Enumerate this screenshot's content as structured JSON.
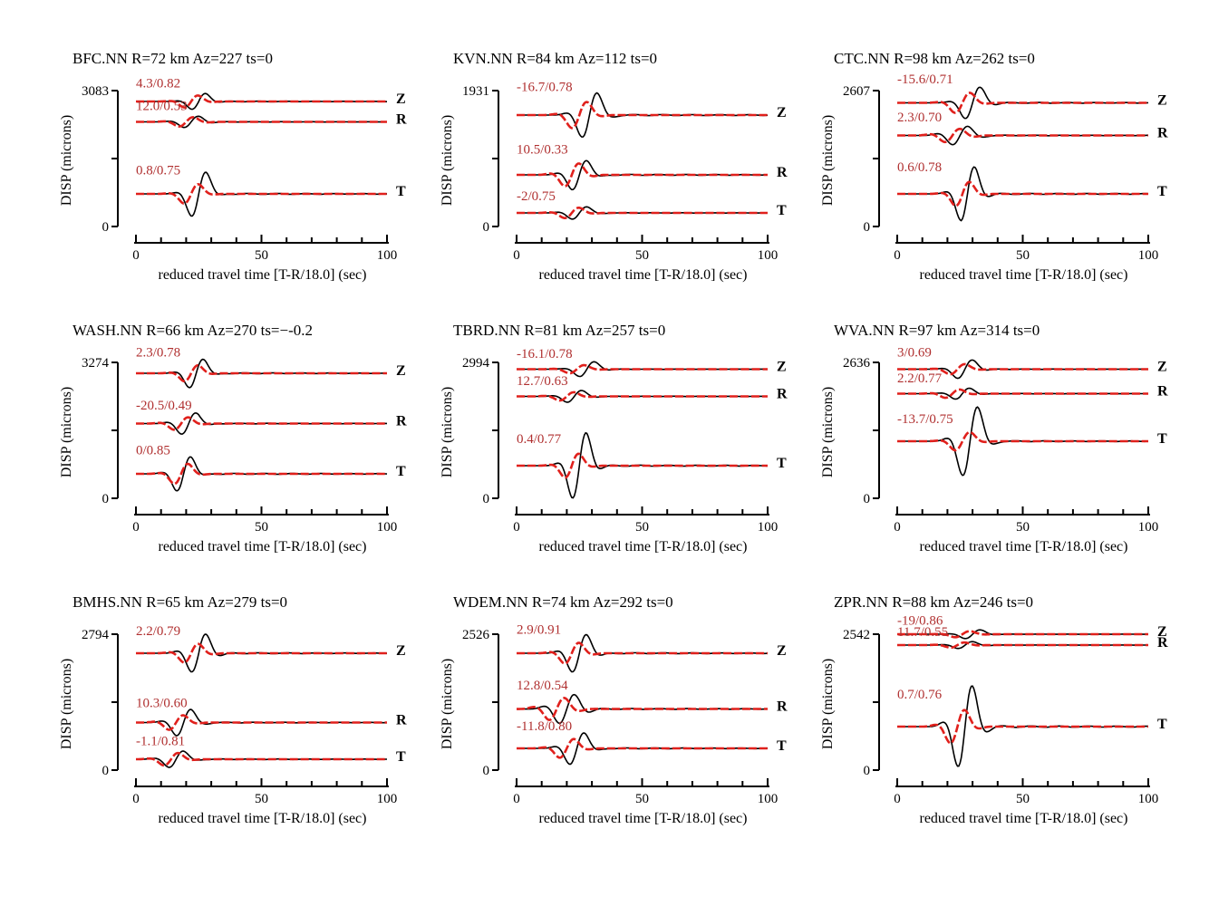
{
  "colors": {
    "observed": "#000000",
    "synthetic": "#e0201c",
    "annotation": "#b03030"
  },
  "chart_data": [
    {
      "type": "line",
      "title": "BFC.NN R=72 km Az=227 ts=0",
      "xlabel": "reduced travel time [T-R/18.0] (sec)",
      "ylabel": "DISP (microns)",
      "xlim": [
        0,
        100
      ],
      "xticks": [
        0,
        50,
        100
      ],
      "ymax_label": "3083",
      "ymin_label": "0",
      "traces": [
        {
          "component": "Z",
          "annotation": "4.3/0.82",
          "baseline": 0.92,
          "scale": 0.06,
          "center": 22,
          "width": 5.5,
          "period": 14,
          "obs_shift": 3,
          "obs_gain": 1.3
        },
        {
          "component": "R",
          "annotation": "12.0/0.53",
          "baseline": 0.77,
          "scale": 0.045,
          "center": 20,
          "width": 6,
          "period": 14,
          "obs_shift": 2,
          "obs_gain": 1.2
        },
        {
          "component": "T",
          "annotation": "0.8/0.75",
          "baseline": 0.24,
          "scale": 0.1,
          "center": 22,
          "width": 5.5,
          "period": 15,
          "obs_shift": 3,
          "obs_gain": 2.3
        }
      ]
    },
    {
      "type": "line",
      "title": "KVN.NN R=84 km Az=112 ts=0",
      "xlabel": "reduced travel time [T-R/18.0] (sec)",
      "ylabel": "DISP (microns)",
      "xlim": [
        0,
        100
      ],
      "xticks": [
        0,
        50,
        100
      ],
      "ymax_label": "1931",
      "ymin_label": "0",
      "traces": [
        {
          "component": "Z",
          "annotation": "-16.7/0.78",
          "baseline": 0.82,
          "scale": 0.13,
          "center": 25,
          "width": 6,
          "period": 15,
          "obs_shift": 4,
          "obs_gain": 1.7
        },
        {
          "component": "R",
          "annotation": "10.5/0.33",
          "baseline": 0.38,
          "scale": 0.11,
          "center": 22,
          "width": 6,
          "period": 14,
          "obs_shift": 3,
          "obs_gain": 1.3
        },
        {
          "component": "T",
          "annotation": "-2/0.75",
          "baseline": 0.1,
          "scale": 0.05,
          "center": 22,
          "width": 6,
          "period": 14,
          "obs_shift": 3,
          "obs_gain": 1.2
        }
      ]
    },
    {
      "type": "line",
      "title": "CTC.NN R=98 km Az=262 ts=0",
      "xlabel": "reduced travel time [T-R/18.0] (sec)",
      "ylabel": "DISP (microns)",
      "xlim": [
        0,
        100
      ],
      "xticks": [
        0,
        50,
        100
      ],
      "ymax_label": "2607",
      "ymin_label": "0",
      "traces": [
        {
          "component": "Z",
          "annotation": "-15.6/0.71",
          "baseline": 0.91,
          "scale": 0.1,
          "center": 26,
          "width": 6,
          "period": 15,
          "obs_shift": 4,
          "obs_gain": 1.5
        },
        {
          "component": "R",
          "annotation": "2.3/0.70",
          "baseline": 0.67,
          "scale": 0.06,
          "center": 22,
          "width": 7,
          "period": 14,
          "obs_shift": 3,
          "obs_gain": 1.4
        },
        {
          "component": "T",
          "annotation": "0.6/0.78",
          "baseline": 0.24,
          "scale": 0.12,
          "center": 26,
          "width": 5.5,
          "period": 14,
          "obs_shift": 2,
          "obs_gain": 2.2
        }
      ]
    },
    {
      "type": "line",
      "title": "WASH.NN R=66 km Az=270 ts=−-0.2",
      "xlabel": "reduced travel time [T-R/18.0] (sec)",
      "ylabel": "DISP (microns)",
      "xlim": [
        0,
        100
      ],
      "xticks": [
        0,
        50,
        100
      ],
      "ymax_label": "3274",
      "ymin_label": "0",
      "traces": [
        {
          "component": "Z",
          "annotation": "2.3/0.78",
          "baseline": 0.92,
          "scale": 0.08,
          "center": 22,
          "width": 5.5,
          "period": 14,
          "obs_shift": 2,
          "obs_gain": 1.8
        },
        {
          "component": "R",
          "annotation": "-20.5/0.49",
          "baseline": 0.55,
          "scale": 0.06,
          "center": 18,
          "width": 6,
          "period": 14,
          "obs_shift": 3,
          "obs_gain": 1.7
        },
        {
          "component": "T",
          "annotation": "0/0.85",
          "baseline": 0.18,
          "scale": 0.1,
          "center": 18,
          "width": 5.5,
          "period": 14,
          "obs_shift": 1,
          "obs_gain": 1.7
        }
      ]
    },
    {
      "type": "line",
      "title": "TBRD.NN R=81 km Az=257 ts=0",
      "xlabel": "reduced travel time [T-R/18.0] (sec)",
      "ylabel": "DISP (microns)",
      "xlim": [
        0,
        100
      ],
      "xticks": [
        0,
        50,
        100
      ],
      "ymax_label": "2994",
      "ymin_label": "0",
      "traces": [
        {
          "component": "Z",
          "annotation": "-16.1/0.78",
          "baseline": 0.95,
          "scale": 0.04,
          "center": 24,
          "width": 6,
          "period": 15,
          "obs_shift": 4,
          "obs_gain": 1.8
        },
        {
          "component": "R",
          "annotation": "12.7/0.63",
          "baseline": 0.75,
          "scale": 0.04,
          "center": 20,
          "width": 6,
          "period": 14,
          "obs_shift": 3,
          "obs_gain": 1.4
        },
        {
          "component": "T",
          "annotation": "0.4/0.77",
          "baseline": 0.24,
          "scale": 0.12,
          "center": 22,
          "width": 5.5,
          "period": 14,
          "obs_shift": 3,
          "obs_gain": 2.7
        }
      ]
    },
    {
      "type": "line",
      "title": "WVA.NN R=97 km Az=314 ts=0",
      "xlabel": "reduced travel time [T-R/18.0] (sec)",
      "ylabel": "DISP (microns)",
      "xlim": [
        0,
        100
      ],
      "xticks": [
        0,
        50,
        100
      ],
      "ymax_label": "2636",
      "ymin_label": "0",
      "traces": [
        {
          "component": "Z",
          "annotation": "3/0.69",
          "baseline": 0.95,
          "scale": 0.05,
          "center": 24,
          "width": 6,
          "period": 15,
          "obs_shift": 3,
          "obs_gain": 1.8
        },
        {
          "component": "R",
          "annotation": "2.2/0.77",
          "baseline": 0.77,
          "scale": 0.04,
          "center": 22,
          "width": 6,
          "period": 14,
          "obs_shift": 4,
          "obs_gain": 1.3
        },
        {
          "component": "T",
          "annotation": "-13.7/0.75",
          "baseline": 0.42,
          "scale": 0.09,
          "center": 26,
          "width": 6,
          "period": 15,
          "obs_shift": 3,
          "obs_gain": 3.8
        }
      ]
    },
    {
      "type": "line",
      "title": "BMHS.NN R=65 km Az=279 ts=0",
      "xlabel": "reduced travel time [T-R/18.0] (sec)",
      "ylabel": "DISP (microns)",
      "xlim": [
        0,
        100
      ],
      "xticks": [
        0,
        50,
        100
      ],
      "ymax_label": "2794",
      "ymin_label": "0",
      "traces": [
        {
          "component": "Z",
          "annotation": "2.2/0.79",
          "baseline": 0.86,
          "scale": 0.09,
          "center": 22,
          "width": 6,
          "period": 14,
          "obs_shift": 3,
          "obs_gain": 2.0
        },
        {
          "component": "R",
          "annotation": "10.3/0.60",
          "baseline": 0.35,
          "scale": 0.07,
          "center": 16,
          "width": 6,
          "period": 14,
          "obs_shift": 3,
          "obs_gain": 1.8
        },
        {
          "component": "T",
          "annotation": "-1.1/0.81",
          "baseline": 0.08,
          "scale": 0.06,
          "center": 14,
          "width": 6,
          "period": 14,
          "obs_shift": 2,
          "obs_gain": 1.3
        }
      ]
    },
    {
      "type": "line",
      "title": "WDEM.NN R=74 km Az=292 ts=0",
      "xlabel": "reduced travel time [T-R/18.0] (sec)",
      "ylabel": "DISP (microns)",
      "xlim": [
        0,
        100
      ],
      "xticks": [
        0,
        50,
        100
      ],
      "ymax_label": "2526",
      "ymin_label": "0",
      "traces": [
        {
          "component": "Z",
          "annotation": "2.9/0.91",
          "baseline": 0.86,
          "scale": 0.1,
          "center": 22,
          "width": 6,
          "period": 14,
          "obs_shift": 3,
          "obs_gain": 1.8
        },
        {
          "component": "R",
          "annotation": "12.8/0.54",
          "baseline": 0.45,
          "scale": 0.1,
          "center": 16,
          "width": 7,
          "period": 14,
          "obs_shift": 4,
          "obs_gain": 1.3
        },
        {
          "component": "T",
          "annotation": "-11.8/0.80",
          "baseline": 0.16,
          "scale": 0.09,
          "center": 20,
          "width": 6,
          "period": 14,
          "obs_shift": 4,
          "obs_gain": 1.7
        }
      ]
    },
    {
      "type": "line",
      "title": "ZPR.NN R=88 km Az=246 ts=0",
      "xlabel": "reduced travel time [T-R/18.0] (sec)",
      "ylabel": "DISP (microns)",
      "xlim": [
        0,
        100
      ],
      "xticks": [
        0,
        50,
        100
      ],
      "ymax_label": "2542",
      "ymin_label": "0",
      "traces": [
        {
          "component": "Z",
          "annotation": "-19/0.86",
          "baseline": 1.0,
          "scale": 0.03,
          "center": 26,
          "width": 6,
          "period": 15,
          "obs_shift": 4,
          "obs_gain": 1.4
        },
        {
          "component": "R",
          "annotation": "11.7/0.55",
          "baseline": 0.92,
          "scale": 0.025,
          "center": 24,
          "width": 6,
          "period": 14,
          "obs_shift": 3,
          "obs_gain": 1.3
        },
        {
          "component": "T",
          "annotation": "0.7/0.76",
          "baseline": 0.32,
          "scale": 0.16,
          "center": 24,
          "width": 6,
          "period": 14,
          "obs_shift": 3,
          "obs_gain": 2.4
        }
      ]
    }
  ]
}
